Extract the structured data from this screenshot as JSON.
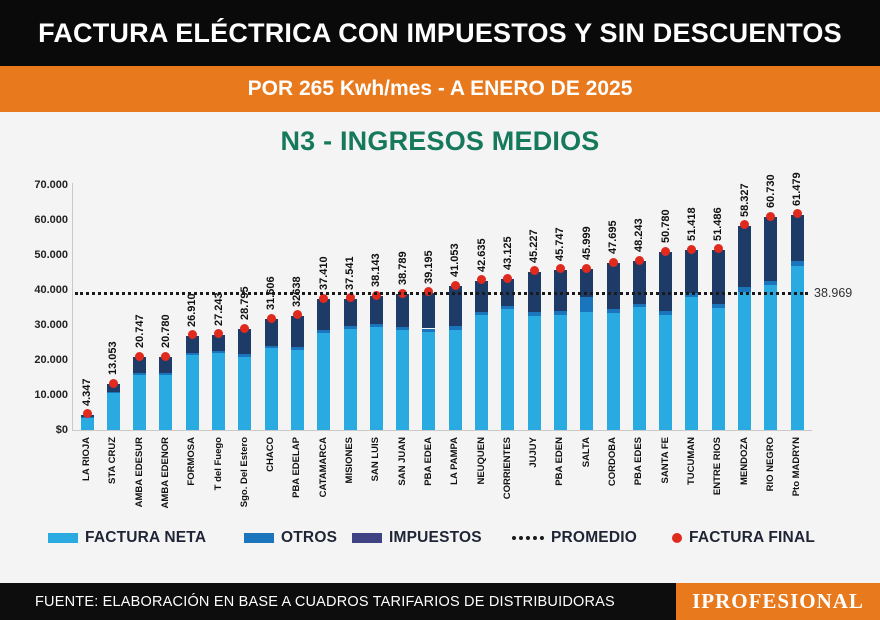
{
  "header": {
    "title": "FACTURA ELÉCTRICA CON IMPUESTOS Y SIN DESCUENTOS",
    "subtitle": "POR 265 Kwh/mes - A ENERO DE 2025"
  },
  "chart_title": "N3 - INGRESOS MEDIOS",
  "chart_data": {
    "type": "bar",
    "stacked": true,
    "title": "N3 - INGRESOS MEDIOS",
    "xlabel": "",
    "ylabel": "",
    "ylim": [
      0,
      72000
    ],
    "grid": false,
    "legend_position": "bottom",
    "categories": [
      "LA RIOJA",
      "STA CRUZ",
      "AMBA EDESUR",
      "AMBA EDENOR",
      "FORMOSA",
      "T del Fuego",
      "Sgo. Del Estero",
      "CHACO",
      "PBA EDELAP",
      "CATAMARCA",
      "MISIONES",
      "SAN LUIS",
      "SAN JUAN",
      "PBA EDEA",
      "LA PAMPA",
      "NEUQUEN",
      "CORRIENTES",
      "JUJUY",
      "PBA EDEN",
      "SALTA",
      "CORDOBA",
      "PBA EDES",
      "SANTA FE",
      "TUCUMAN",
      "ENTRE RIOS",
      "MENDOZA",
      "RIO NEGRO",
      "Pto MADRYN"
    ],
    "series": [
      {
        "name": "FACTURA NETA",
        "color": "#29ABE2",
        "values": [
          3500,
          10500,
          15700,
          15700,
          21400,
          22100,
          20800,
          23400,
          22900,
          27700,
          28900,
          29400,
          28600,
          28100,
          28600,
          32900,
          34500,
          32600,
          32900,
          33800,
          33400,
          35100,
          32900,
          38100,
          34900,
          39500,
          41400,
          46900
        ]
      },
      {
        "name": "OTROS",
        "color": "#1B75BC",
        "values": [
          200,
          400,
          700,
          700,
          600,
          600,
          800,
          700,
          900,
          800,
          700,
          800,
          900,
          900,
          1000,
          900,
          800,
          1000,
          1000,
          4300,
          1100,
          1000,
          1200,
          1100,
          1200,
          1300,
          1300,
          1400
        ]
      },
      {
        "name": "IMPUESTOS",
        "color": "#1E3A66",
        "values": [
          647,
          2153,
          4347,
          4380,
          4910,
          4543,
          7195,
          7506,
          8838,
          8910,
          7941,
          7943,
          9289,
          10195,
          11453,
          8835,
          7825,
          11627,
          11847,
          7899,
          13195,
          12143,
          16680,
          12218,
          15386,
          17527,
          18030,
          13179
        ]
      }
    ],
    "totals": [
      4347,
      13053,
      20747,
      20780,
      26910,
      27243,
      28795,
      31606,
      32638,
      37410,
      37541,
      38143,
      38789,
      39195,
      41053,
      42635,
      43125,
      45227,
      45747,
      45999,
      47695,
      48243,
      50780,
      51418,
      51486,
      58327,
      60730,
      61479
    ],
    "total_labels": [
      "4.347",
      "13.053",
      "20.747",
      "20.780",
      "26.910",
      "27.243",
      "28.795",
      "31.606",
      "32638",
      "37.410",
      "37.541",
      "38.143",
      "38.789",
      "39.195",
      "41.053",
      "42.635",
      "43.125",
      "45.227",
      "45.747",
      "45.999",
      "47.695",
      "48.243",
      "50.780",
      "51.418",
      "51.486",
      "58.327",
      "60.730",
      "61.479"
    ],
    "promedio": {
      "value": 38969,
      "label": "38.969"
    },
    "y_ticks": [
      {
        "value": 70000,
        "label": "70.000"
      },
      {
        "value": 60000,
        "label": "60.000"
      },
      {
        "value": 50000,
        "label": "50.000"
      },
      {
        "value": 40000,
        "label": "40.000"
      },
      {
        "value": 30000,
        "label": "30.000"
      },
      {
        "value": 20000,
        "label": "20.000"
      },
      {
        "value": 10000,
        "label": "10.000"
      },
      {
        "value": 0,
        "label": "$0"
      }
    ],
    "annotations": [
      {
        "text": "38.969",
        "y": 38969,
        "type": "promedio-line"
      }
    ]
  },
  "legend": {
    "items": [
      {
        "label": "FACTURA NETA",
        "type": "swatch"
      },
      {
        "label": "OTROS",
        "type": "swatch"
      },
      {
        "label": "IMPUESTOS",
        "type": "swatch"
      },
      {
        "label": "PROMEDIO",
        "type": "dashed-line"
      },
      {
        "label": "FACTURA FINAL",
        "type": "dot"
      }
    ]
  },
  "footer": {
    "source": "FUENTE: ELABORACIÓN EN BASE A CUADROS TARIFARIOS DE DISTRIBUIDORAS",
    "brand": "IPROFESIONAL"
  },
  "colors": {
    "header_bg": "#0a0a0a",
    "footer_bg": "#0d0d0d",
    "orange": "#E8791D",
    "green_title": "#17795C",
    "page_bg": "#f4f4f4",
    "factura_neta": "#29ABE2",
    "otros": "#1B75BC",
    "impuestos_bar": "#1E3A66",
    "impuestos_legend": "#3F4384",
    "factura_final_dot": "#E02A1E",
    "promedio_line": "#1a1a1a"
  }
}
